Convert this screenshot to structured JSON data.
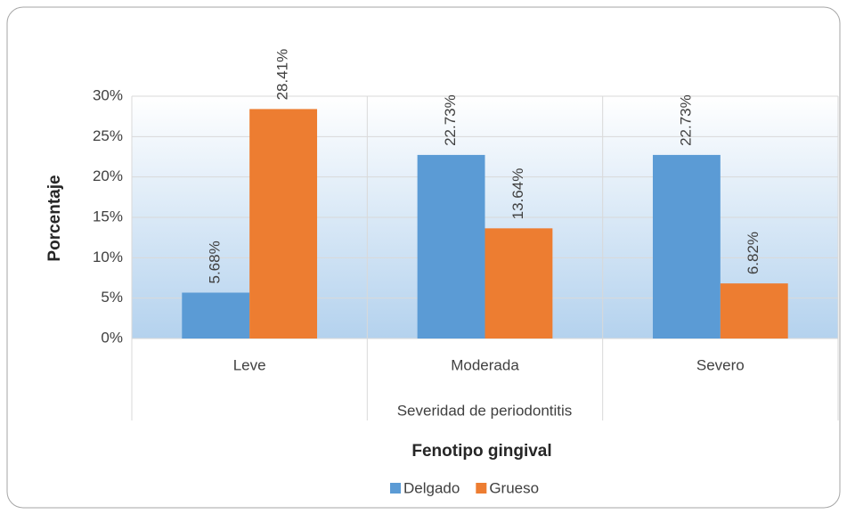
{
  "chart_data": {
    "type": "bar",
    "categories": [
      "Leve",
      "Moderada",
      "Severo"
    ],
    "xlabel": "Severidad de periodontitis",
    "ylabel": "Porcentaje",
    "legend_title": "Fenotipo gingival",
    "series": [
      {
        "name": "Delgado",
        "color": "#5b9bd5",
        "values": [
          5.68,
          22.73,
          22.73
        ],
        "value_labels": [
          "5.68%",
          "22.73%",
          "22.73%"
        ]
      },
      {
        "name": "Grueso",
        "color": "#ed7d31",
        "values": [
          28.41,
          13.64,
          6.82
        ],
        "value_labels": [
          "28.41%",
          "13.64%",
          "6.82%"
        ]
      }
    ],
    "ylim": [
      0,
      30
    ],
    "yticks": [
      {
        "value": 0,
        "label": "0%"
      },
      {
        "value": 5,
        "label": "5%"
      },
      {
        "value": 10,
        "label": "10%"
      },
      {
        "value": 15,
        "label": "15%"
      },
      {
        "value": 20,
        "label": "20%"
      },
      {
        "value": 25,
        "label": "25%"
      },
      {
        "value": 30,
        "label": "30%"
      }
    ],
    "grid": true,
    "legend": "bottom"
  }
}
